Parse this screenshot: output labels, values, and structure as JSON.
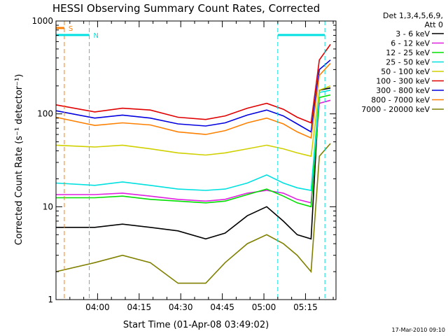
{
  "chart_data": {
    "type": "line",
    "title": "HESSI Observing Summary Count Rates, Corrected",
    "xlabel": "Start Time (01-Apr-08 03:49:02)",
    "ylabel": "Corrected Count Rate (s⁻¹ detector⁻¹)",
    "yscale": "log",
    "ylim": [
      1,
      1000
    ],
    "xlim_minutes_after_0349": [
      -4,
      97
    ],
    "y_ticks": [
      {
        "value": 1,
        "label": "1"
      },
      {
        "value": 10,
        "label": "10"
      },
      {
        "value": 100,
        "label": "100"
      },
      {
        "value": 1000,
        "label": "1000"
      }
    ],
    "x_ticks": [
      {
        "minutes": 11,
        "label": "04:00"
      },
      {
        "minutes": 26,
        "label": "04:15"
      },
      {
        "minutes": 41,
        "label": "04:30"
      },
      {
        "minutes": 56,
        "label": "04:45"
      },
      {
        "minutes": 71,
        "label": "05:00"
      },
      {
        "minutes": 86,
        "label": "05:15"
      }
    ],
    "grid": false,
    "legend_position": "right",
    "legend_header": [
      "Det 1,3,4,5,6,9,",
      "Att 0"
    ],
    "series": [
      {
        "name": "3 - 6 keV",
        "color": "#000000",
        "x": [
          -4,
          10,
          20,
          30,
          40,
          50,
          57,
          65,
          72,
          78,
          83,
          88,
          91,
          95
        ],
        "y": [
          6.0,
          6.0,
          6.5,
          6.0,
          5.5,
          4.5,
          5.2,
          8.0,
          10.0,
          7.0,
          5.0,
          4.5,
          180,
          190
        ]
      },
      {
        "name": "6 - 12 keV",
        "color": "#e020e0",
        "x": [
          -4,
          10,
          20,
          30,
          40,
          50,
          57,
          65,
          72,
          78,
          83,
          88,
          91,
          95
        ],
        "y": [
          13.5,
          13.5,
          14.0,
          13.0,
          12.0,
          11.5,
          12.0,
          14.0,
          15.0,
          14.0,
          12.0,
          11.0,
          130,
          140
        ]
      },
      {
        "name": "12 - 25 keV",
        "color": "#00e000",
        "x": [
          -4,
          10,
          20,
          30,
          40,
          50,
          57,
          65,
          72,
          78,
          83,
          88,
          91,
          95
        ],
        "y": [
          12.5,
          12.5,
          13.0,
          12.0,
          11.5,
          11.0,
          11.5,
          13.5,
          15.5,
          13.0,
          11.0,
          10.0,
          150,
          160
        ]
      },
      {
        "name": "25 - 50 keV",
        "color": "#00e0e0",
        "x": [
          -4,
          10,
          20,
          30,
          40,
          50,
          57,
          65,
          72,
          78,
          83,
          88,
          91,
          95
        ],
        "y": [
          18.0,
          17.0,
          18.5,
          17.0,
          15.5,
          15.0,
          15.5,
          18.0,
          22.0,
          18.0,
          16.0,
          15.0,
          170,
          180
        ]
      },
      {
        "name": "50 - 100 keV",
        "color": "#d0d000",
        "x": [
          -4,
          10,
          20,
          30,
          40,
          50,
          57,
          65,
          72,
          78,
          83,
          88,
          91,
          95
        ],
        "y": [
          46.0,
          44.0,
          46.0,
          42.0,
          38.0,
          36.0,
          38.0,
          42.0,
          46.0,
          42.0,
          38.0,
          35.0,
          180,
          200
        ]
      },
      {
        "name": "100 - 300 keV",
        "color": "#e00000",
        "x": [
          -4,
          10,
          20,
          30,
          40,
          50,
          57,
          65,
          72,
          78,
          83,
          88,
          91,
          95
        ],
        "y": [
          125,
          105,
          115,
          110,
          92,
          87,
          95,
          115,
          130,
          112,
          92,
          80,
          380,
          560
        ]
      },
      {
        "name": "300 - 800 keV",
        "color": "#0000e0",
        "x": [
          -4,
          10,
          20,
          30,
          40,
          50,
          57,
          65,
          72,
          78,
          83,
          88,
          91,
          95
        ],
        "y": [
          108,
          90,
          97,
          90,
          78,
          74,
          80,
          97,
          110,
          95,
          78,
          64,
          300,
          380
        ]
      },
      {
        "name": "800 - 7000 keV",
        "color": "#ff8000",
        "x": [
          -4,
          10,
          20,
          30,
          40,
          50,
          57,
          65,
          72,
          78,
          83,
          88,
          91,
          95
        ],
        "y": [
          92,
          75,
          80,
          76,
          64,
          60,
          66,
          80,
          90,
          78,
          64,
          55,
          260,
          350
        ]
      },
      {
        "name": "7000 - 20000 keV",
        "color": "#808000",
        "x": [
          -4,
          10,
          20,
          30,
          40,
          50,
          57,
          65,
          72,
          78,
          83,
          88,
          91,
          95
        ],
        "y": [
          2.0,
          2.5,
          3.0,
          2.5,
          1.5,
          1.5,
          2.5,
          4.0,
          5.0,
          4.0,
          3.0,
          2.0,
          35,
          48
        ]
      }
    ],
    "flag_bars": [
      {
        "label": "S",
        "color": "#ff8000",
        "x_start": -4,
        "x_end": -1
      },
      {
        "label": "N",
        "color": "#00e0e0",
        "x_start": -4,
        "x_end": 8
      },
      {
        "label": "",
        "color": "#00e0e0",
        "x_start": 76,
        "x_end": 93
      }
    ],
    "vertical_markers": [
      {
        "color": "#ff8000",
        "x": -1
      },
      {
        "color": "#00e0e0",
        "x": 8
      },
      {
        "color": "#00e0e0",
        "x": 76
      },
      {
        "color": "#00e0e0",
        "x": 93
      }
    ]
  },
  "footer_timestamp": "17-Mar-2010 09:10"
}
